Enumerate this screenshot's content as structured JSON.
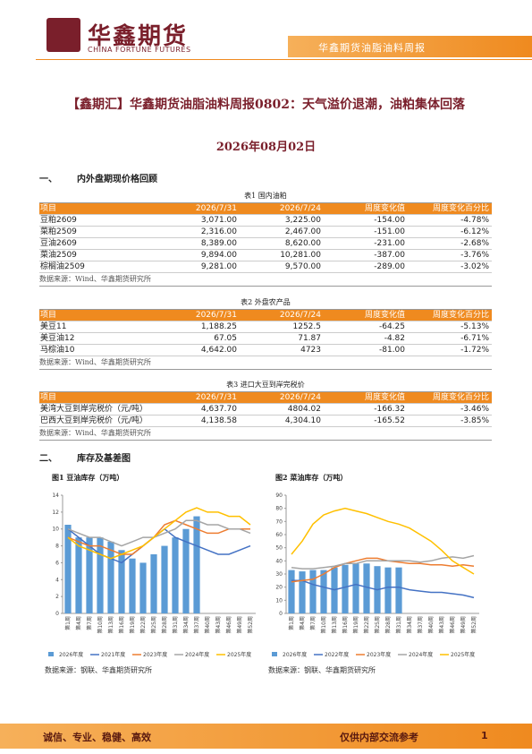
{
  "header": {
    "logo_cn": "华鑫期货",
    "logo_en": "CHINA FORTUNE FUTURES",
    "tagline": "华鑫期货油脂油料周报"
  },
  "title": "【鑫期汇】华鑫期货油脂油料周报0802：天气溢价退潮，油粕集体回落",
  "date": "2026年08月02日",
  "sections": [
    {
      "number": "一、",
      "text": "内外盘期现价格回顾"
    },
    {
      "number": "二、",
      "text": "库存及基差图"
    }
  ],
  "tables": [
    {
      "caption": "表1 国内油粕",
      "columns": [
        "项目",
        "2026/7/31",
        "2026/7/24",
        "周度变化值",
        "周度变化百分比"
      ],
      "rows": [
        [
          "豆粕2609",
          "3,071.00",
          "3,225.00",
          "-154.00",
          "-4.78%"
        ],
        [
          "菜粕2509",
          "2,316.00",
          "2,467.00",
          "-151.00",
          "-6.12%"
        ],
        [
          "豆油2609",
          "8,389.00",
          "8,620.00",
          "-231.00",
          "-2.68%"
        ],
        [
          "菜油2509",
          "9,894.00",
          "10,281.00",
          "-387.00",
          "-3.76%"
        ],
        [
          "棕榈油2509",
          "9,281.00",
          "9,570.00",
          "-289.00",
          "-3.02%"
        ]
      ],
      "source": "数据来源：Wind、华鑫期货研究所"
    },
    {
      "caption": "表2 外盘农产品",
      "columns": [
        "项目",
        "2026/7/31",
        "2026/7/24",
        "周度变化值",
        "周度变化百分比"
      ],
      "rows": [
        [
          "美豆11",
          "1,188.25",
          "1252.5",
          "-64.25",
          "-5.13%"
        ],
        [
          "美豆油12",
          "67.05",
          "71.87",
          "-4.82",
          "-6.71%"
        ],
        [
          "马棕油10",
          "4,642.00",
          "4723",
          "-81.00",
          "-1.72%"
        ]
      ],
      "source": "数据来源：Wind、华鑫期货研究所"
    },
    {
      "caption": "表3 进口大豆到岸完税价",
      "columns": [
        "项目",
        "2026/7/31",
        "2026/7/24",
        "周度变化值",
        "周度变化百分比"
      ],
      "rows": [
        [
          "美湾大豆到岸完税价（元/吨）",
          "4,637.70",
          "4804.02",
          "-166.32",
          "-3.46%"
        ],
        [
          "巴西大豆到岸完税价（元/吨）",
          "4,138.58",
          "4,304.10",
          "-165.52",
          "-3.85%"
        ]
      ],
      "source": "数据来源：Wind、华鑫期货研究所"
    }
  ],
  "chart_data": [
    {
      "type": "line",
      "title": "图1 豆油库存（万吨）",
      "source": "数据来源：钢联、华鑫期货研究所",
      "categories": [
        "第1周",
        "第4周",
        "第7周",
        "第10周",
        "第13周",
        "第16周",
        "第19周",
        "第22周",
        "第25周",
        "第28周",
        "第31周",
        "第34周",
        "第37周",
        "第40周",
        "第43周",
        "第46周",
        "第49周",
        "第52周"
      ],
      "ylim": [
        0,
        14
      ],
      "yticks": [
        0,
        2,
        4,
        6,
        8,
        10,
        12,
        14
      ],
      "series": [
        {
          "name": "2026年度",
          "type": "bar",
          "color": "#5b9bd5",
          "values": [
            10.5,
            9,
            9,
            9,
            8.5,
            7.5,
            6.5,
            6,
            7,
            8,
            9,
            10,
            11.5,
            null,
            null,
            null,
            null,
            null
          ]
        },
        {
          "name": "2021年度",
          "color": "#4472c4",
          "values": [
            10,
            9,
            8,
            7,
            6.5,
            6,
            7,
            8,
            9,
            10,
            9,
            8.5,
            8,
            7.5,
            7,
            7,
            7.5,
            8
          ]
        },
        {
          "name": "2023年度",
          "color": "#ed7d31",
          "values": [
            9,
            8.5,
            8,
            8,
            7.5,
            7,
            7,
            8,
            9,
            10.5,
            11,
            10.5,
            10,
            9.5,
            9.5,
            10,
            10,
            10
          ]
        },
        {
          "name": "2024年度",
          "color": "#a5a5a5",
          "values": [
            10,
            9.5,
            9,
            9,
            8.5,
            8,
            8.5,
            9,
            9,
            9.5,
            10,
            11,
            11,
            10.5,
            10.5,
            10,
            10,
            9.5
          ]
        },
        {
          "name": "2025年度",
          "color": "#ffc000",
          "values": [
            9,
            8,
            7.5,
            7,
            6.5,
            7,
            7.5,
            8,
            9,
            10,
            11,
            12,
            12.5,
            12,
            12,
            11.5,
            11.5,
            10.5
          ]
        }
      ]
    },
    {
      "type": "line",
      "title": "图2 菜油库存（万吨）",
      "source": "数据来源：钢联、华鑫期货研究所",
      "categories": [
        "第1周",
        "第4周",
        "第7周",
        "第10周",
        "第13周",
        "第16周",
        "第19周",
        "第22周",
        "第25周",
        "第28周",
        "第31周",
        "第34周",
        "第37周",
        "第40周",
        "第43周",
        "第46周",
        "第49周",
        "第52周"
      ],
      "ylim": [
        0,
        90
      ],
      "yticks": [
        0,
        10,
        20,
        30,
        40,
        50,
        60,
        70,
        80,
        90
      ],
      "series": [
        {
          "name": "2026年度",
          "type": "bar",
          "color": "#5b9bd5",
          "values": [
            33,
            32,
            33,
            33,
            35,
            37,
            38,
            38,
            36,
            35,
            35,
            null,
            null,
            null,
            null,
            null,
            null,
            null
          ]
        },
        {
          "name": "2022年度",
          "color": "#4472c4",
          "values": [
            25,
            25,
            22,
            20,
            18,
            20,
            22,
            20,
            18,
            20,
            20,
            18,
            17,
            16,
            16,
            15,
            14,
            12
          ]
        },
        {
          "name": "2023年度",
          "color": "#ed7d31",
          "values": [
            24,
            25,
            26,
            30,
            35,
            38,
            40,
            42,
            42,
            40,
            39,
            38,
            38,
            37,
            37,
            36,
            37,
            36
          ]
        },
        {
          "name": "2024年度",
          "color": "#a5a5a5",
          "values": [
            35,
            34,
            34,
            35,
            36,
            38,
            38,
            40,
            40,
            40,
            40,
            40,
            39,
            40,
            42,
            43,
            42,
            44
          ]
        },
        {
          "name": "2025年度",
          "color": "#ffc000",
          "values": [
            45,
            55,
            68,
            75,
            78,
            80,
            78,
            76,
            73,
            70,
            68,
            65,
            60,
            55,
            48,
            40,
            35,
            30
          ]
        }
      ]
    }
  ],
  "footer": {
    "motto": "诚信、专业、稳健、高效",
    "notice": "仅供内部交流参考",
    "page": "1"
  }
}
